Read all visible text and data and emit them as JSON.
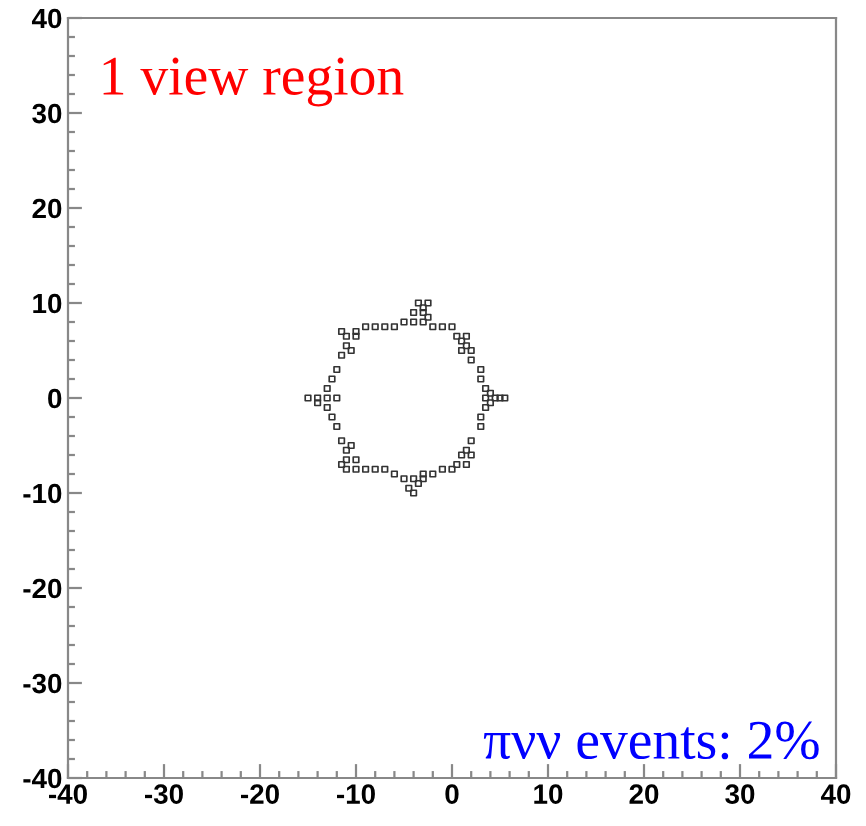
{
  "chart_data": {
    "type": "scatter",
    "x": [
      -9,
      -8,
      -7,
      -6,
      -2,
      -1,
      0,
      -5,
      -4,
      -3,
      -2.5,
      -4,
      -3,
      -3.5,
      -2.5,
      -3,
      0.5,
      1,
      1.5,
      1.5,
      2,
      1,
      2,
      3,
      3,
      3.5,
      3.5,
      3.5,
      4,
      4.5,
      5,
      5.5,
      4,
      3,
      3,
      2,
      1.5,
      1,
      2,
      0.5,
      1.5,
      0,
      -1,
      -2,
      -3,
      -4,
      -5,
      -3.5,
      -4.5,
      -4,
      -3,
      -6,
      -7,
      -8,
      -9,
      -10,
      -11,
      -11,
      -11,
      -10.5,
      -11.5,
      -10,
      -11.5,
      -12,
      -12.5,
      -13,
      -13,
      -14,
      -15,
      -13,
      -12.5,
      -12,
      -14,
      -12,
      -11.5,
      -11,
      -11,
      -10.5,
      -10,
      -10,
      -11.5
    ],
    "values": [
      7.5,
      7.5,
      7.5,
      7.5,
      7.5,
      7.5,
      7.5,
      8,
      8,
      8,
      8.5,
      9,
      9,
      10,
      10,
      9.5,
      6.5,
      6,
      5.5,
      6.5,
      5,
      5,
      4,
      3,
      2,
      1,
      0,
      -1,
      0.5,
      0,
      0,
      0,
      -0.5,
      -2,
      -3,
      -4.5,
      -5.5,
      -6,
      -6,
      -7,
      -7,
      -7.5,
      -7.5,
      -8,
      -8,
      -8.5,
      -8.5,
      -9,
      -9.5,
      -10,
      -8.5,
      -8,
      -7.5,
      -7.5,
      -7.5,
      -7.5,
      -7.5,
      -6.5,
      -5.5,
      -5,
      -7,
      -6.5,
      -4.5,
      -3,
      -2,
      -1,
      0,
      0,
      0,
      1,
      2,
      3,
      -0.5,
      0,
      4.5,
      5.5,
      6.5,
      5,
      6.5,
      7,
      7
    ],
    "color": "#333333",
    "marker": "square",
    "xlim": [
      -40,
      40
    ],
    "ylim": [
      -40,
      40
    ],
    "xticks": [
      -40,
      {
        "value": -38,
        "label": null
      },
      {
        "value": -36,
        "label": null
      },
      {
        "value": -34,
        "label": null
      },
      {
        "value": -32,
        "label": null
      },
      -30,
      {
        "value": -28,
        "label": null
      },
      {
        "value": -26,
        "label": null
      },
      {
        "value": -24,
        "label": null
      },
      {
        "value": -22,
        "label": null
      },
      -20,
      {
        "value": -18,
        "label": null
      },
      {
        "value": -16,
        "label": null
      },
      {
        "value": -14,
        "label": null
      },
      {
        "value": -12,
        "label": null
      },
      -10,
      {
        "value": -8,
        "label": null
      },
      {
        "value": -6,
        "label": null
      },
      {
        "value": -4,
        "label": null
      },
      {
        "value": -2,
        "label": null
      },
      0,
      {
        "value": 2,
        "label": null
      },
      {
        "value": 4,
        "label": null
      },
      {
        "value": 6,
        "label": null
      },
      {
        "value": 8,
        "label": null
      },
      10,
      {
        "value": 12,
        "label": null
      },
      {
        "value": 14,
        "label": null
      },
      {
        "value": 16,
        "label": null
      },
      {
        "value": 18,
        "label": null
      },
      20,
      {
        "value": 22,
        "label": null
      },
      {
        "value": 24,
        "label": null
      },
      {
        "value": 26,
        "label": null
      },
      {
        "value": 28,
        "label": null
      },
      30,
      {
        "value": 32,
        "label": null
      },
      {
        "value": 34,
        "label": null
      },
      {
        "value": 36,
        "label": null
      },
      {
        "value": 38,
        "label": null
      },
      40
    ],
    "yticks": [
      -40,
      {
        "value": -38,
        "label": null
      },
      {
        "value": -36,
        "label": null
      },
      {
        "value": -34,
        "label": null
      },
      {
        "value": -32,
        "label": null
      },
      -30,
      {
        "value": -28,
        "label": null
      },
      {
        "value": -26,
        "label": null
      },
      {
        "value": -24,
        "label": null
      },
      {
        "value": -22,
        "label": null
      },
      -20,
      {
        "value": -18,
        "label": null
      },
      {
        "value": -16,
        "label": null
      },
      {
        "value": -14,
        "label": null
      },
      {
        "value": -12,
        "label": null
      },
      -10,
      {
        "value": -8,
        "label": null
      },
      {
        "value": -6,
        "label": null
      },
      {
        "value": -4,
        "label": null
      },
      {
        "value": -2,
        "label": null
      },
      0,
      {
        "value": 2,
        "label": null
      },
      {
        "value": 4,
        "label": null
      },
      {
        "value": 6,
        "label": null
      },
      {
        "value": 8,
        "label": null
      },
      10,
      {
        "value": 12,
        "label": null
      },
      {
        "value": 14,
        "label": null
      },
      {
        "value": 16,
        "label": null
      },
      {
        "value": 18,
        "label": null
      },
      20,
      {
        "value": 22,
        "label": null
      },
      {
        "value": 24,
        "label": null
      },
      {
        "value": 26,
        "label": null
      },
      {
        "value": 28,
        "label": null
      },
      30,
      {
        "value": 32,
        "label": null
      },
      {
        "value": 34,
        "label": null
      },
      {
        "value": 36,
        "label": null
      },
      {
        "value": 38,
        "label": null
      },
      40
    ],
    "grid": false,
    "annotations": [
      "1 view region",
      "πνν events: 2%"
    ]
  }
}
